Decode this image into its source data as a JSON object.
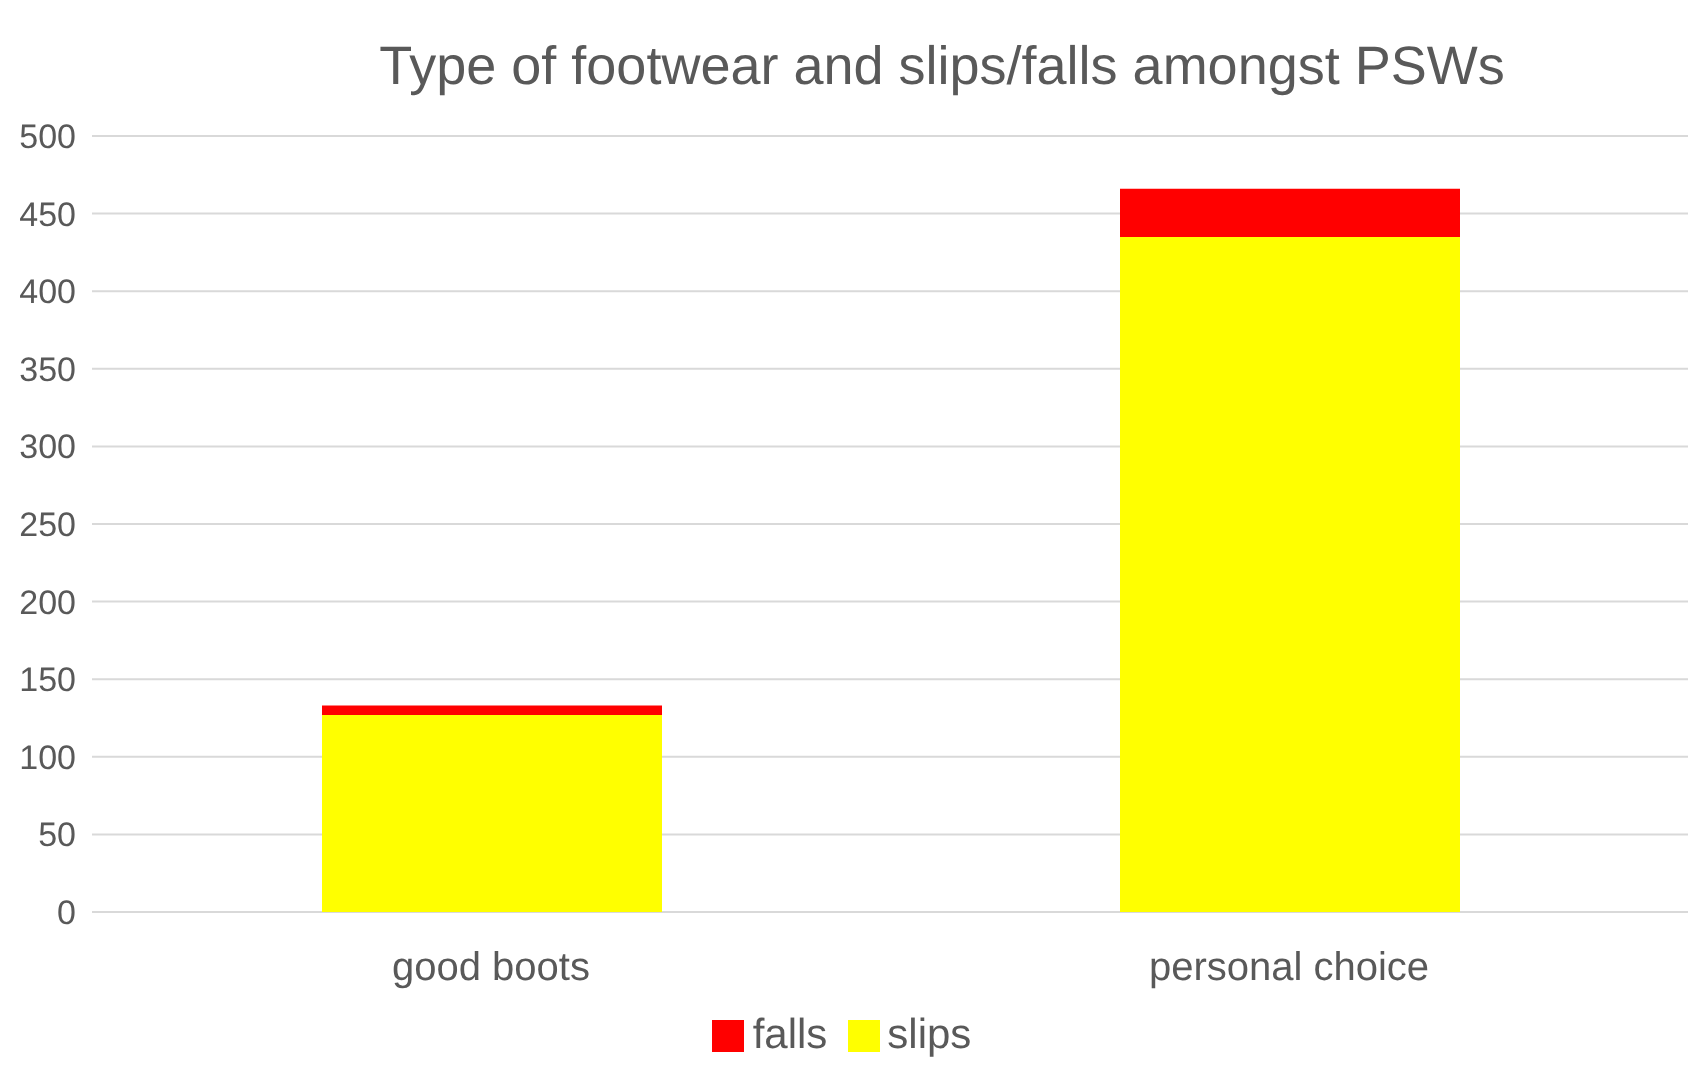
{
  "chart_data": {
    "type": "bar",
    "title": "Type of footwear and slips/falls amongst PSWs",
    "categories": [
      "good boots",
      "personal choice"
    ],
    "stacked": true,
    "series": [
      {
        "name": "slips",
        "color": "#ffff00",
        "values": [
          127,
          435
        ]
      },
      {
        "name": "falls",
        "color": "#ff0000",
        "values": [
          6,
          31
        ]
      }
    ],
    "ylim": [
      0,
      500
    ],
    "yticks": [
      0,
      50,
      100,
      150,
      200,
      250,
      300,
      350,
      400,
      450,
      500
    ],
    "grid": "y",
    "legend": "bottom"
  }
}
